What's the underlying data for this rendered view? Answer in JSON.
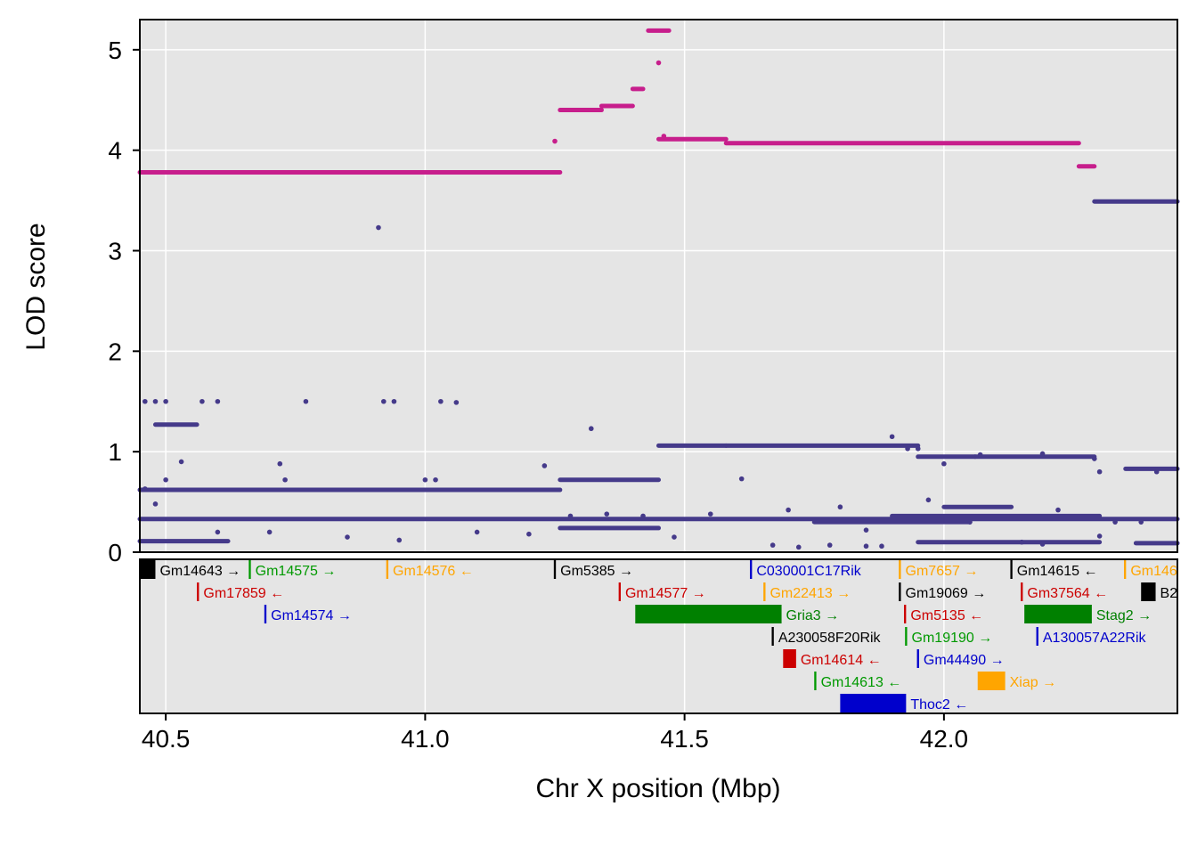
{
  "chart_data": {
    "type": "scatter",
    "xlabel": "Chr X position (Mbp)",
    "ylabel": "LOD score",
    "xlim": [
      40.45,
      42.45
    ],
    "ylim": [
      0,
      5.3
    ],
    "x_ticks": [
      {
        "value": 40.5,
        "label": "40.5"
      },
      {
        "value": 41.0,
        "label": "41.0"
      },
      {
        "value": 41.5,
        "label": "41.5"
      },
      {
        "value": 42.0,
        "label": "42.0"
      }
    ],
    "y_ticks": [
      {
        "value": 0,
        "label": "0"
      },
      {
        "value": 1,
        "label": "1"
      },
      {
        "value": 2,
        "label": "2"
      },
      {
        "value": 3,
        "label": "3"
      },
      {
        "value": 4,
        "label": "4"
      },
      {
        "value": 5,
        "label": "5"
      }
    ],
    "grid": true,
    "series": [
      {
        "color": "#c71e8c",
        "segments": [
          {
            "x0": 40.45,
            "x1": 41.26,
            "y": 3.78
          },
          {
            "x0": 41.26,
            "x1": 41.34,
            "y": 4.4
          },
          {
            "x0": 41.34,
            "x1": 41.4,
            "y": 4.44
          },
          {
            "x0": 41.4,
            "x1": 41.42,
            "y": 4.61
          },
          {
            "x0": 41.43,
            "x1": 41.47,
            "y": 5.19
          },
          {
            "x0": 41.45,
            "x1": 41.58,
            "y": 4.11
          },
          {
            "x0": 41.58,
            "x1": 42.26,
            "y": 4.07
          },
          {
            "x0": 42.26,
            "x1": 42.29,
            "y": 3.84
          }
        ],
        "points": [
          {
            "x": 41.25,
            "y": 4.09
          },
          {
            "x": 41.45,
            "y": 4.87
          },
          {
            "x": 41.46,
            "y": 4.14
          }
        ]
      },
      {
        "color": "#453a8a",
        "segments": [
          {
            "x0": 42.29,
            "x1": 42.45,
            "y": 3.49
          },
          {
            "x0": 40.45,
            "x1": 42.45,
            "y": 0.33
          },
          {
            "x0": 40.45,
            "x1": 41.26,
            "y": 0.62
          },
          {
            "x0": 41.26,
            "x1": 41.45,
            "y": 0.72
          },
          {
            "x0": 40.45,
            "x1": 40.62,
            "y": 0.11
          },
          {
            "x0": 41.26,
            "x1": 41.45,
            "y": 0.24
          },
          {
            "x0": 41.45,
            "x1": 41.58,
            "y": 1.06
          },
          {
            "x0": 41.58,
            "x1": 41.95,
            "y": 1.06
          },
          {
            "x0": 41.95,
            "x1": 42.06,
            "y": 0.95
          },
          {
            "x0": 42.06,
            "x1": 42.29,
            "y": 0.95
          },
          {
            "x0": 41.75,
            "x1": 42.05,
            "y": 0.3
          },
          {
            "x0": 41.9,
            "x1": 42.3,
            "y": 0.36
          },
          {
            "x0": 41.95,
            "x1": 42.3,
            "y": 0.1
          },
          {
            "x0": 42.0,
            "x1": 42.13,
            "y": 0.45
          },
          {
            "x0": 40.48,
            "x1": 40.56,
            "y": 1.27
          },
          {
            "x0": 42.35,
            "x1": 42.45,
            "y": 0.83
          },
          {
            "x0": 42.37,
            "x1": 42.45,
            "y": 0.09
          }
        ],
        "points": [
          {
            "x": 40.46,
            "y": 1.5
          },
          {
            "x": 40.48,
            "y": 1.5
          },
          {
            "x": 40.5,
            "y": 1.5
          },
          {
            "x": 40.57,
            "y": 1.5
          },
          {
            "x": 40.6,
            "y": 1.5
          },
          {
            "x": 40.77,
            "y": 1.5
          },
          {
            "x": 40.92,
            "y": 1.5
          },
          {
            "x": 40.94,
            "y": 1.5
          },
          {
            "x": 41.03,
            "y": 1.5
          },
          {
            "x": 41.06,
            "y": 1.49
          },
          {
            "x": 40.91,
            "y": 3.23
          },
          {
            "x": 41.32,
            "y": 1.23
          },
          {
            "x": 40.53,
            "y": 0.9
          },
          {
            "x": 40.72,
            "y": 0.88
          },
          {
            "x": 40.5,
            "y": 0.72
          },
          {
            "x": 40.73,
            "y": 0.72
          },
          {
            "x": 41.0,
            "y": 0.72
          },
          {
            "x": 41.02,
            "y": 0.72
          },
          {
            "x": 41.23,
            "y": 0.86
          },
          {
            "x": 40.46,
            "y": 0.63
          },
          {
            "x": 40.48,
            "y": 0.48
          },
          {
            "x": 41.9,
            "y": 1.15
          },
          {
            "x": 41.93,
            "y": 1.03
          },
          {
            "x": 41.95,
            "y": 1.03
          },
          {
            "x": 42.07,
            "y": 0.97
          },
          {
            "x": 42.19,
            "y": 0.98
          },
          {
            "x": 42.29,
            "y": 0.93
          },
          {
            "x": 42.3,
            "y": 0.8
          },
          {
            "x": 42.41,
            "y": 0.8
          },
          {
            "x": 41.61,
            "y": 0.73
          },
          {
            "x": 41.48,
            "y": 0.15
          },
          {
            "x": 41.67,
            "y": 0.07
          },
          {
            "x": 41.72,
            "y": 0.05
          },
          {
            "x": 41.78,
            "y": 0.07
          },
          {
            "x": 41.85,
            "y": 0.06
          },
          {
            "x": 41.88,
            "y": 0.06
          },
          {
            "x": 42.15,
            "y": 0.1
          },
          {
            "x": 42.19,
            "y": 0.08
          },
          {
            "x": 42.3,
            "y": 0.16
          },
          {
            "x": 42.33,
            "y": 0.3
          },
          {
            "x": 42.38,
            "y": 0.3
          },
          {
            "x": 40.6,
            "y": 0.2
          },
          {
            "x": 40.7,
            "y": 0.2
          },
          {
            "x": 40.85,
            "y": 0.15
          },
          {
            "x": 40.95,
            "y": 0.12
          },
          {
            "x": 41.1,
            "y": 0.2
          },
          {
            "x": 41.2,
            "y": 0.18
          },
          {
            "x": 41.28,
            "y": 0.36
          },
          {
            "x": 41.35,
            "y": 0.38
          },
          {
            "x": 41.42,
            "y": 0.36
          },
          {
            "x": 41.55,
            "y": 0.38
          },
          {
            "x": 41.7,
            "y": 0.42
          },
          {
            "x": 41.8,
            "y": 0.45
          },
          {
            "x": 41.85,
            "y": 0.22
          },
          {
            "x": 41.97,
            "y": 0.52
          },
          {
            "x": 42.0,
            "y": 0.88
          },
          {
            "x": 42.05,
            "y": 0.3
          },
          {
            "x": 42.22,
            "y": 0.42
          }
        ]
      }
    ],
    "genes": [
      {
        "name": "Gm14643",
        "dir": "→",
        "start": 40.45,
        "end": 40.48,
        "row": 0,
        "color": "#000000"
      },
      {
        "name": "Gm14575",
        "dir": "→",
        "start": 40.66,
        "end": 40.664,
        "row": 0,
        "color": "#009900"
      },
      {
        "name": "Gm14576",
        "dir": "←",
        "start": 40.925,
        "end": 40.929,
        "row": 0,
        "color": "#ffa500"
      },
      {
        "name": "Gm5385",
        "dir": "→",
        "start": 41.248,
        "end": 41.252,
        "row": 0,
        "color": "#000000"
      },
      {
        "name": "C030001C17Rik",
        "dir": "",
        "start": 41.626,
        "end": 41.63,
        "row": 0,
        "color": "#0000cc"
      },
      {
        "name": "Gm7657",
        "dir": "→",
        "start": 41.913,
        "end": 41.917,
        "row": 0,
        "color": "#ffa500"
      },
      {
        "name": "Gm14615",
        "dir": "←",
        "start": 42.128,
        "end": 42.132,
        "row": 0,
        "color": "#000000"
      },
      {
        "name": "Gm146",
        "dir": "",
        "start": 42.347,
        "end": 42.351,
        "row": 0,
        "color": "#ffa500"
      },
      {
        "name": "Gm17859",
        "dir": "←",
        "start": 40.56,
        "end": 40.564,
        "row": 1,
        "color": "#cc0000"
      },
      {
        "name": "Gm14577",
        "dir": "→",
        "start": 41.373,
        "end": 41.377,
        "row": 1,
        "color": "#cc0000"
      },
      {
        "name": "Gm22413",
        "dir": "→",
        "start": 41.652,
        "end": 41.656,
        "row": 1,
        "color": "#ffa500"
      },
      {
        "name": "Gm19069",
        "dir": "→",
        "start": 41.913,
        "end": 41.917,
        "row": 1,
        "color": "#000000"
      },
      {
        "name": "Gm37564",
        "dir": "←",
        "start": 42.148,
        "end": 42.152,
        "row": 1,
        "color": "#cc0000"
      },
      {
        "name": "B2",
        "dir": "",
        "start": 42.38,
        "end": 42.408,
        "row": 1,
        "color": "#000000"
      },
      {
        "name": "Gm14574",
        "dir": "→",
        "start": 40.69,
        "end": 40.694,
        "row": 2,
        "color": "#0000cc"
      },
      {
        "name": "Gria3",
        "dir": "→",
        "start": 41.405,
        "end": 41.687,
        "row": 2,
        "color": "#008000"
      },
      {
        "name": "Gm5135",
        "dir": "←",
        "start": 41.923,
        "end": 41.927,
        "row": 2,
        "color": "#cc0000"
      },
      {
        "name": "Stag2",
        "dir": "→",
        "start": 42.155,
        "end": 42.285,
        "row": 2,
        "color": "#008000"
      },
      {
        "name": "A230058F20Rik",
        "dir": "",
        "start": 41.668,
        "end": 41.672,
        "row": 3,
        "color": "#000000"
      },
      {
        "name": "Gm19190",
        "dir": "→",
        "start": 41.925,
        "end": 41.929,
        "row": 3,
        "color": "#009900"
      },
      {
        "name": "A130057A22Rik",
        "dir": "",
        "start": 42.178,
        "end": 42.182,
        "row": 3,
        "color": "#0000cc"
      },
      {
        "name": "Gm14614",
        "dir": "←",
        "start": 41.69,
        "end": 41.715,
        "row": 4,
        "color": "#cc0000"
      },
      {
        "name": "Gm44490",
        "dir": "→",
        "start": 41.948,
        "end": 41.952,
        "row": 4,
        "color": "#0000cc"
      },
      {
        "name": "Gm14613",
        "dir": "←",
        "start": 41.75,
        "end": 41.754,
        "row": 5,
        "color": "#009900"
      },
      {
        "name": "Xiap",
        "dir": "→",
        "start": 42.065,
        "end": 42.118,
        "row": 5,
        "color": "#ffa500"
      },
      {
        "name": "Thoc2",
        "dir": "←",
        "start": 41.8,
        "end": 41.927,
        "row": 6,
        "color": "#0000cc"
      }
    ]
  }
}
